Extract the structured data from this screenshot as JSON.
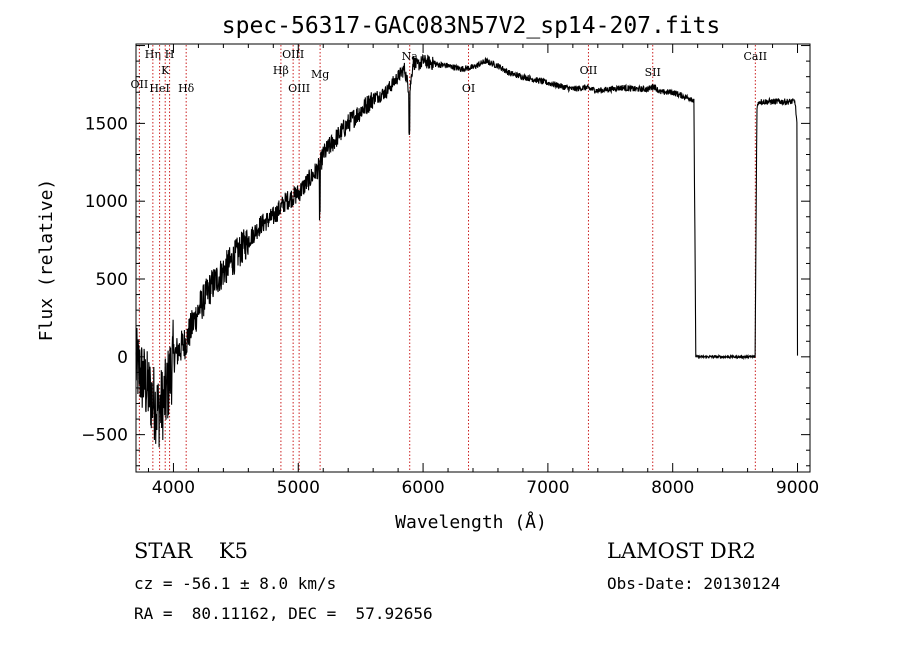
{
  "chart_data": {
    "type": "line",
    "title": "spec-56317-GAC083N57V2_sp14-207.fits",
    "xlabel": "Wavelength (Å)",
    "ylabel": "Flux (relative)",
    "xlim": [
      3700,
      9100
    ],
    "ylim": [
      -740,
      2010
    ],
    "x_ticks": [
      4000,
      5000,
      6000,
      7000,
      8000,
      9000
    ],
    "y_ticks": [
      -500,
      0,
      500,
      1000,
      1500
    ],
    "grid": false,
    "series": [
      {
        "color": "#000000",
        "x": [
          3700,
          3760,
          3820,
          3880,
          3940,
          4000,
          4100,
          4200,
          4300,
          4400,
          4500,
          4600,
          4700,
          4800,
          4850,
          4900,
          5000,
          5100,
          5170,
          5200,
          5300,
          5400,
          5500,
          5600,
          5700,
          5800,
          5850,
          5893,
          5920,
          5950,
          6000,
          6100,
          6200,
          6300,
          6400,
          6500,
          6600,
          6700,
          6800,
          6900,
          7000,
          7100,
          7200,
          7300,
          7400,
          7500,
          7600,
          7700,
          7800,
          7850,
          7900,
          8000,
          8100,
          8150,
          8170,
          8185,
          8200,
          8300,
          8400,
          8500,
          8600,
          8660,
          8675,
          8690,
          8700,
          8800,
          8900,
          8980,
          8995,
          9000
        ],
        "y": [
          -50,
          -150,
          -250,
          -350,
          -250,
          0,
          100,
          300,
          450,
          550,
          650,
          750,
          850,
          900,
          950,
          1000,
          1050,
          1150,
          1220,
          1300,
          1400,
          1500,
          1580,
          1660,
          1700,
          1800,
          1850,
          1700,
          1900,
          1870,
          1900,
          1880,
          1870,
          1850,
          1860,
          1900,
          1870,
          1820,
          1800,
          1780,
          1760,
          1740,
          1720,
          1730,
          1710,
          1720,
          1730,
          1720,
          1720,
          1740,
          1700,
          1700,
          1670,
          1660,
          1640,
          0,
          0,
          0,
          0,
          0,
          0,
          0,
          1600,
          1640,
          1640,
          1640,
          1640,
          1640,
          1500,
          0
        ]
      }
    ],
    "lines": [
      {
        "label": "OII",
        "x": 3727
      },
      {
        "label": "Hη",
        "x": 3835
      },
      {
        "label": "K",
        "x": 3934
      },
      {
        "label": "H",
        "x": 3969
      },
      {
        "label": "HeI",
        "x": 3889
      },
      {
        "label": "Hδ",
        "x": 4102
      },
      {
        "label": "Hβ",
        "x": 4861
      },
      {
        "label": "OIII",
        "x": 4959
      },
      {
        "label": "OIII",
        "x": 5007
      },
      {
        "label": "Mg",
        "x": 5175
      },
      {
        "label": "Na",
        "x": 5893
      },
      {
        "label": "OI",
        "x": 6364
      },
      {
        "label": "OII",
        "x": 7325
      },
      {
        "label": "SII",
        "x": 7840
      },
      {
        "label": "CaII",
        "x": 8662
      }
    ]
  },
  "info": {
    "class": "STAR    K5",
    "survey": "LAMOST DR2",
    "cz": "cz = -56.1 ± 8.0 km/s",
    "obs_date": "Obs-Date: 20130124",
    "radec": "RA =  80.11162, DEC =  57.92656"
  }
}
